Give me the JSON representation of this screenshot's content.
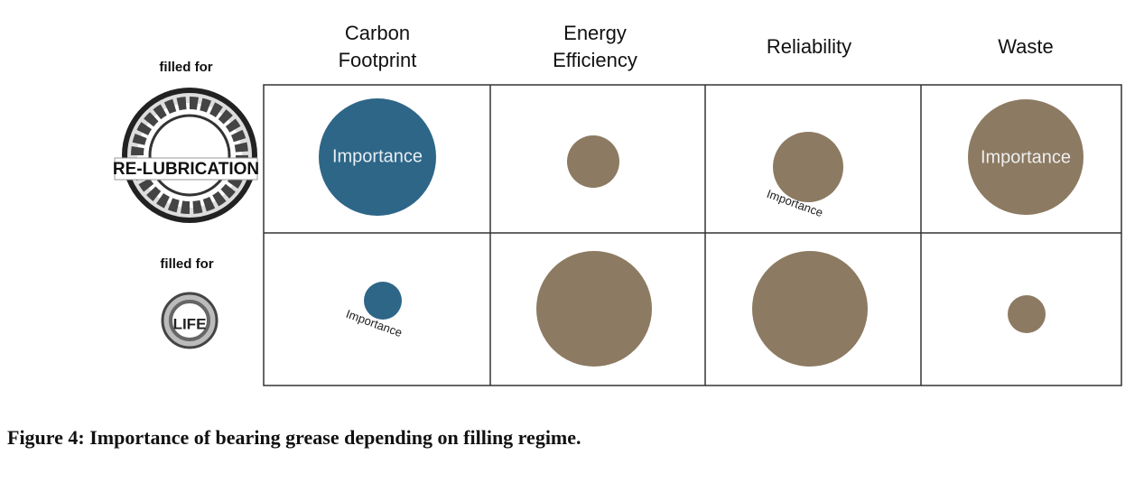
{
  "columns": [
    "Carbon Footprint",
    "Energy Efficiency",
    "Reliability",
    "Waste"
  ],
  "rows": [
    {
      "label": "filled for",
      "icon_text": "RE-LUBRICATION",
      "cell_labels": [
        "Importance",
        null,
        "Importance",
        "Importance"
      ]
    },
    {
      "label": "filled for",
      "icon_text": "LIFE",
      "cell_labels": [
        "Importance",
        null,
        null,
        null
      ]
    }
  ],
  "caption": "Figure 4: Importance of bearing grease depending on filling regime."
}
